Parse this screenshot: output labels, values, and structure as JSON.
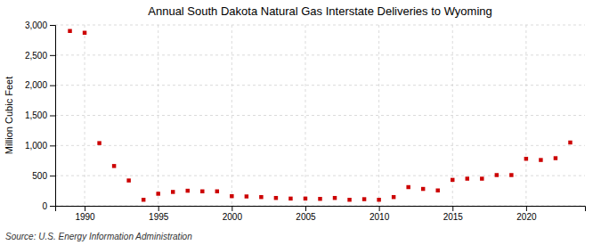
{
  "chart_data": {
    "type": "scatter",
    "title": "Annual South Dakota Natural Gas Interstate Deliveries to Wyoming",
    "ylabel": "Million Cubic Feet",
    "source": "Source: U.S. Energy Information Administration",
    "color": "#cc0000",
    "marker": "square",
    "x": [
      1989,
      1990,
      1991,
      1992,
      1993,
      1994,
      1995,
      1996,
      1997,
      1998,
      1999,
      2000,
      2001,
      2002,
      2003,
      2004,
      2005,
      2006,
      2007,
      2008,
      2009,
      2010,
      2011,
      2012,
      2013,
      2014,
      2015,
      2016,
      2017,
      2018,
      2019,
      2020,
      2021,
      2022,
      2023
    ],
    "values": [
      2900,
      2870,
      1040,
      660,
      420,
      100,
      200,
      230,
      250,
      240,
      240,
      160,
      155,
      145,
      130,
      120,
      120,
      115,
      130,
      100,
      110,
      100,
      145,
      310,
      280,
      255,
      430,
      450,
      450,
      510,
      510,
      780,
      760,
      790,
      1050
    ],
    "xlim": [
      1988,
      2024
    ],
    "ylim": [
      0,
      3000
    ],
    "xticks": [
      1990,
      1995,
      2000,
      2005,
      2010,
      2015,
      2020
    ],
    "yticks": [
      0,
      500,
      {
        "value": 1000,
        "label": "1,000"
      },
      {
        "value": 1500,
        "label": "1,500"
      },
      {
        "value": 2000,
        "label": "2,000"
      },
      {
        "value": 2500,
        "label": "2,500"
      },
      {
        "value": 3000,
        "label": "3,000"
      }
    ],
    "grid": true
  }
}
